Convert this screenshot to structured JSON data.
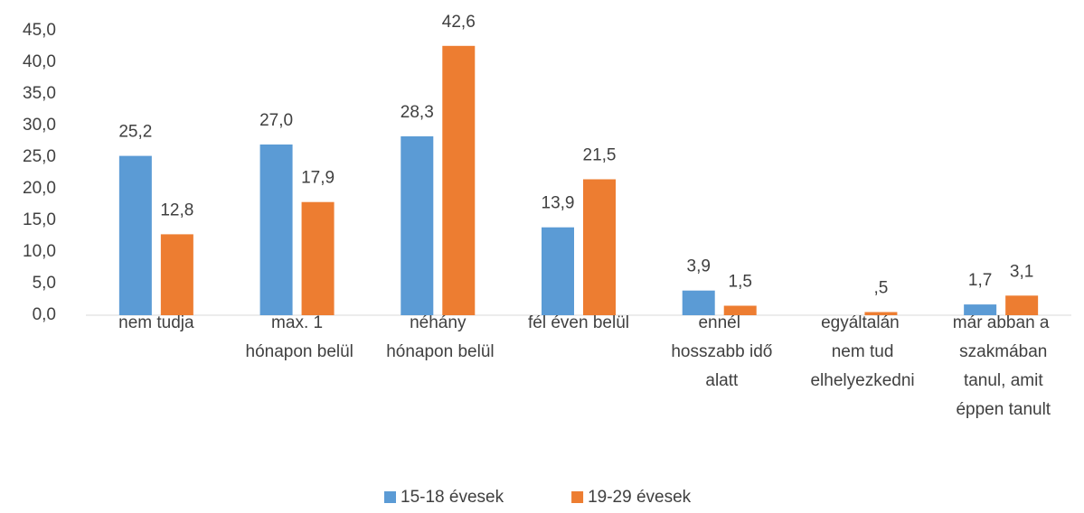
{
  "chart_data": {
    "type": "bar",
    "categories": [
      "nem tudja",
      "max. 1 hónapon belül",
      "néhány hónapon belül",
      "fél éven belül",
      "ennél hosszabb idő alatt",
      "egyáltalán nem tud elhelyezkedni",
      "már abban a szakmában tanul, amit éppen tanult"
    ],
    "series": [
      {
        "name": "15-18 évesek",
        "color": "#5b9bd5",
        "values": [
          25.2,
          27.0,
          28.3,
          13.9,
          3.9,
          null,
          1.7
        ],
        "value_labels": [
          "25,2",
          "27,0",
          "28,3",
          "13,9",
          "3,9",
          null,
          "1,7"
        ]
      },
      {
        "name": "19-29 évesek",
        "color": "#ed7d31",
        "values": [
          12.8,
          17.9,
          42.6,
          21.5,
          1.5,
          0.5,
          3.1
        ],
        "value_labels": [
          "12,8",
          "17,9",
          "42,6",
          "21,5",
          "1,5",
          ",5",
          "3,1"
        ]
      }
    ],
    "ylim": [
      0,
      45
    ],
    "yticks": [
      {
        "value": 0,
        "label": "0,0"
      },
      {
        "value": 5,
        "label": "5,0"
      },
      {
        "value": 10,
        "label": "10,0"
      },
      {
        "value": 15,
        "label": "15,0"
      },
      {
        "value": 20,
        "label": "20,0"
      },
      {
        "value": 25,
        "label": "25,0"
      },
      {
        "value": 30,
        "label": "30,0"
      },
      {
        "value": 35,
        "label": "35,0"
      },
      {
        "value": 40,
        "label": "40,0"
      },
      {
        "value": 45,
        "label": "45,0"
      }
    ],
    "legend": "bottom"
  }
}
